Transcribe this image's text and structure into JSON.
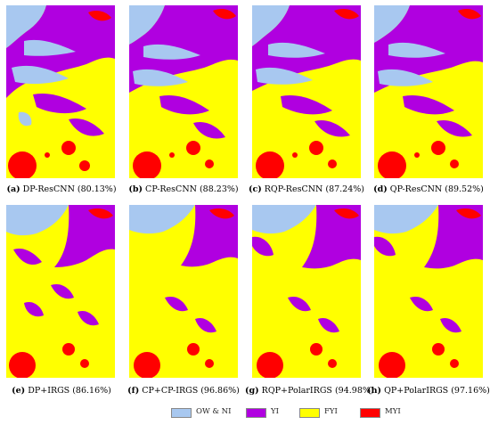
{
  "figure": {
    "panels": [
      {
        "letter": "(a)",
        "text": "DP-ResCNN (80.13%)"
      },
      {
        "letter": "(b)",
        "text": "CP-ResCNN (88.23%)"
      },
      {
        "letter": "(c)",
        "text": "RQP-ResCNN (87.24%)"
      },
      {
        "letter": "(d)",
        "text": "QP-ResCNN (89.52%)"
      },
      {
        "letter": "(e)",
        "text": "DP+IRGS (86.16%)"
      },
      {
        "letter": "(f)",
        "text": "CP+CP-IRGS (96.86%)"
      },
      {
        "letter": "(g)",
        "text": "RQP+PolarIRGS (94.98%)"
      },
      {
        "letter": "(h)",
        "text": "QP+PolarIRGS (97.16%)"
      }
    ],
    "legend": [
      {
        "label": "OW & NI",
        "color": "#a8c8f0"
      },
      {
        "label": "YI",
        "color": "#b000e0"
      },
      {
        "label": "FYI",
        "color": "#ffff00"
      },
      {
        "label": "MYI",
        "color": "#ff0000"
      }
    ]
  }
}
